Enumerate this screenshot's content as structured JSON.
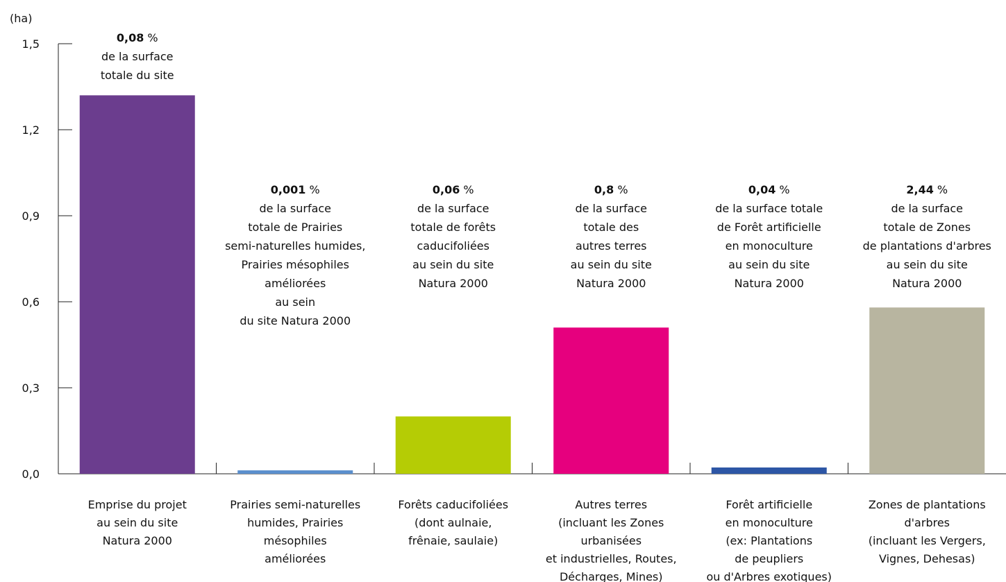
{
  "chart_data": {
    "type": "bar",
    "ylabel": "(ha)",
    "ylim": [
      0,
      1.5
    ],
    "yticks": [
      "0,0",
      "0,3",
      "0,6",
      "0,9",
      "1,2",
      "1,5"
    ],
    "categories": [
      [
        "Emprise du projet",
        "au sein du site",
        "Natura 2000"
      ],
      [
        "Prairies semi-naturelles",
        "humides, Prairies",
        "mésophiles",
        "améliorées"
      ],
      [
        "Forêts caducifoliées",
        "(dont aulnaie,",
        "frênaie, saulaie)"
      ],
      [
        "Autres terres",
        "(incluant les Zones",
        "urbanisées",
        "et industrielles, Routes,",
        "Décharges, Mines)"
      ],
      [
        "Forêt artificielle",
        "en monoculture",
        "(ex: Plantations",
        "de peupliers",
        "ou d'Arbres exotiques)"
      ],
      [
        "Zones de plantations",
        "d'arbres",
        "(incluant les Vergers,",
        "Vignes, Dehesas)"
      ]
    ],
    "values": [
      1.32,
      0.012,
      0.2,
      0.51,
      0.022,
      0.58
    ],
    "colors": [
      "#6b3d8e",
      "#5b8fcd",
      "#b5cc05",
      "#e6007e",
      "#2d56a5",
      "#b8b5a0"
    ],
    "annotations": [
      {
        "value": "0,08",
        "unit": "%",
        "lines": [
          "de la surface",
          "totale du site"
        ]
      },
      {
        "value": "0,001",
        "unit": "%",
        "lines": [
          "de la surface",
          "totale de Prairies",
          "semi-naturelles humides,",
          "Prairies mésophiles",
          "améliorées",
          "au sein",
          "du site Natura 2000"
        ]
      },
      {
        "value": "0,06",
        "unit": "%",
        "lines": [
          "de la surface",
          "totale de forêts",
          "caducifoliées",
          "au sein du site",
          "Natura 2000"
        ]
      },
      {
        "value": "0,8",
        "unit": "%",
        "lines": [
          "de la surface",
          "totale des",
          "autres terres",
          "au sein du site",
          "Natura 2000"
        ]
      },
      {
        "value": "0,04",
        "unit": "%",
        "lines": [
          "de la surface totale",
          "de Forêt artificielle",
          "en monoculture",
          "au sein du site",
          "Natura 2000"
        ]
      },
      {
        "value": "2,44",
        "unit": "%",
        "lines": [
          "de la surface",
          "totale de Zones",
          "de plantations d'arbres",
          "au sein du site",
          "Natura 2000"
        ]
      }
    ],
    "grid": false,
    "legend": "none"
  }
}
